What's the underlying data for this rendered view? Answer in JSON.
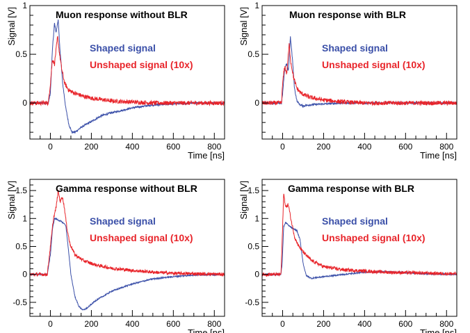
{
  "figure": {
    "colors": {
      "shaped": "#3a4fa8",
      "unshaped": "#e8242a",
      "axes": "#000000",
      "background": "#ffffff"
    },
    "xlabel": "Time [ns]",
    "ylabel": "Signal [V]"
  },
  "chart_data": [
    {
      "type": "line",
      "title": "Muon response without BLR",
      "xlabel": "Time [ns]",
      "ylabel": "Signal [V]",
      "xlim": [
        -100,
        850
      ],
      "ylim": [
        -0.37,
        1.0
      ],
      "xticks": [
        0,
        200,
        400,
        600,
        800
      ],
      "yticks": [
        0,
        0.5,
        1
      ],
      "ytick_labels": [
        "0",
        "0.5",
        "1"
      ],
      "grid": false,
      "legend": "top-right",
      "series": [
        {
          "name": "Shaped signal",
          "color": "#3a4fa8",
          "noise": 0.01,
          "points": [
            [
              -100,
              0
            ],
            [
              -10,
              0
            ],
            [
              0,
              0.1
            ],
            [
              10,
              0.55
            ],
            [
              20,
              0.82
            ],
            [
              28,
              0.72
            ],
            [
              38,
              0.86
            ],
            [
              45,
              0.6
            ],
            [
              60,
              0.2
            ],
            [
              75,
              -0.05
            ],
            [
              90,
              -0.22
            ],
            [
              105,
              -0.3
            ],
            [
              120,
              -0.3
            ],
            [
              150,
              -0.25
            ],
            [
              200,
              -0.19
            ],
            [
              250,
              -0.13
            ],
            [
              300,
              -0.1
            ],
            [
              400,
              -0.05
            ],
            [
              500,
              -0.02
            ],
            [
              600,
              -0.01
            ],
            [
              700,
              0
            ],
            [
              850,
              0
            ]
          ]
        },
        {
          "name": "Unshaped signal (10x)",
          "color": "#e8242a",
          "noise": 0.022,
          "points": [
            [
              -100,
              0
            ],
            [
              -10,
              0
            ],
            [
              0,
              0.2
            ],
            [
              10,
              0.45
            ],
            [
              20,
              0.4
            ],
            [
              35,
              0.68
            ],
            [
              45,
              0.5
            ],
            [
              55,
              0.35
            ],
            [
              70,
              0.2
            ],
            [
              90,
              0.13
            ],
            [
              120,
              0.1
            ],
            [
              160,
              0.07
            ],
            [
              200,
              0.05
            ],
            [
              300,
              0.02
            ],
            [
              400,
              0.01
            ],
            [
              500,
              0
            ],
            [
              850,
              0
            ]
          ]
        }
      ]
    },
    {
      "type": "line",
      "title": "Muon response with BLR",
      "xlabel": "Time [ns]",
      "ylabel": "Signal [V]",
      "xlim": [
        -100,
        850
      ],
      "ylim": [
        -0.37,
        1.0
      ],
      "xticks": [
        0,
        200,
        400,
        600,
        800
      ],
      "yticks": [
        0,
        0.5,
        1
      ],
      "ytick_labels": [
        "0",
        "0.5",
        "1"
      ],
      "grid": false,
      "legend": "top-right",
      "series": [
        {
          "name": "Shaped signal",
          "color": "#3a4fa8",
          "noise": 0.01,
          "points": [
            [
              -100,
              0
            ],
            [
              -5,
              0
            ],
            [
              0,
              0.1
            ],
            [
              10,
              0.35
            ],
            [
              20,
              0.4
            ],
            [
              28,
              0.32
            ],
            [
              38,
              0.68
            ],
            [
              48,
              0.45
            ],
            [
              58,
              0.15
            ],
            [
              70,
              0.02
            ],
            [
              85,
              -0.02
            ],
            [
              100,
              -0.03
            ],
            [
              130,
              -0.02
            ],
            [
              200,
              -0.01
            ],
            [
              300,
              0
            ],
            [
              850,
              0
            ]
          ]
        },
        {
          "name": "Unshaped signal (10x)",
          "color": "#e8242a",
          "noise": 0.022,
          "points": [
            [
              -100,
              0
            ],
            [
              -5,
              0
            ],
            [
              0,
              0.2
            ],
            [
              10,
              0.38
            ],
            [
              20,
              0.3
            ],
            [
              32,
              0.6
            ],
            [
              40,
              0.42
            ],
            [
              55,
              0.25
            ],
            [
              70,
              0.15
            ],
            [
              90,
              0.1
            ],
            [
              130,
              0.06
            ],
            [
              200,
              0.03
            ],
            [
              300,
              0.01
            ],
            [
              400,
              0
            ],
            [
              850,
              0
            ]
          ]
        }
      ]
    },
    {
      "type": "line",
      "title": "Gamma response without BLR",
      "xlabel": "Time [ns]",
      "ylabel": "Signal [V]",
      "xlim": [
        -100,
        850
      ],
      "ylim": [
        -0.75,
        1.7
      ],
      "xticks": [
        0,
        200,
        400,
        600,
        800
      ],
      "yticks": [
        -0.5,
        0,
        0.5,
        1,
        1.5
      ],
      "ytick_labels": [
        "-0.5",
        "0",
        "0.5",
        "1",
        "1.5"
      ],
      "grid": false,
      "legend": "top-right",
      "series": [
        {
          "name": "Shaped signal",
          "color": "#3a4fa8",
          "noise": 0.012,
          "points": [
            [
              -100,
              0
            ],
            [
              -15,
              0
            ],
            [
              0,
              0.35
            ],
            [
              10,
              0.8
            ],
            [
              20,
              1.0
            ],
            [
              40,
              0.97
            ],
            [
              60,
              0.93
            ],
            [
              75,
              0.88
            ],
            [
              85,
              0.55
            ],
            [
              100,
              0.0
            ],
            [
              120,
              -0.4
            ],
            [
              140,
              -0.58
            ],
            [
              160,
              -0.64
            ],
            [
              180,
              -0.6
            ],
            [
              220,
              -0.47
            ],
            [
              300,
              -0.3
            ],
            [
              400,
              -0.17
            ],
            [
              500,
              -0.08
            ],
            [
              600,
              -0.04
            ],
            [
              700,
              -0.01
            ],
            [
              850,
              0
            ]
          ]
        },
        {
          "name": "Unshaped signal (10x)",
          "color": "#e8242a",
          "noise": 0.03,
          "points": [
            [
              -100,
              0
            ],
            [
              -15,
              0
            ],
            [
              0,
              0.5
            ],
            [
              15,
              1.0
            ],
            [
              28,
              1.2
            ],
            [
              38,
              1.5
            ],
            [
              48,
              1.3
            ],
            [
              58,
              1.4
            ],
            [
              68,
              1.2
            ],
            [
              80,
              0.85
            ],
            [
              95,
              0.55
            ],
            [
              120,
              0.35
            ],
            [
              160,
              0.25
            ],
            [
              220,
              0.17
            ],
            [
              300,
              0.11
            ],
            [
              400,
              0.07
            ],
            [
              500,
              0.04
            ],
            [
              600,
              0.02
            ],
            [
              850,
              0
            ]
          ]
        }
      ]
    },
    {
      "type": "line",
      "title": "Gamma response with BLR",
      "xlabel": "Time [ns]",
      "ylabel": "Signal [V]",
      "xlim": [
        -100,
        850
      ],
      "ylim": [
        -0.75,
        1.7
      ],
      "xticks": [
        0,
        200,
        400,
        600,
        800
      ],
      "yticks": [
        -0.5,
        0,
        0.5,
        1,
        1.5
      ],
      "ytick_labels": [
        "-0.5",
        "0",
        "0.5",
        "1",
        "1.5"
      ],
      "grid": false,
      "legend": "top-right",
      "series": [
        {
          "name": "Shaped signal",
          "color": "#3a4fa8",
          "noise": 0.012,
          "points": [
            [
              -100,
              0
            ],
            [
              -8,
              0
            ],
            [
              -2,
              0.2
            ],
            [
              5,
              0.85
            ],
            [
              15,
              0.93
            ],
            [
              30,
              0.87
            ],
            [
              50,
              0.82
            ],
            [
              70,
              0.78
            ],
            [
              85,
              0.62
            ],
            [
              100,
              0.2
            ],
            [
              115,
              -0.02
            ],
            [
              140,
              -0.07
            ],
            [
              200,
              -0.04
            ],
            [
              300,
              0
            ],
            [
              400,
              0.04
            ],
            [
              500,
              0.05
            ],
            [
              600,
              0.03
            ],
            [
              700,
              0.01
            ],
            [
              850,
              0
            ]
          ]
        },
        {
          "name": "Unshaped signal (10x)",
          "color": "#e8242a",
          "noise": 0.03,
          "points": [
            [
              -100,
              0
            ],
            [
              -8,
              0
            ],
            [
              -2,
              0.6
            ],
            [
              5,
              1.45
            ],
            [
              15,
              1.2
            ],
            [
              28,
              1.25
            ],
            [
              40,
              1.0
            ],
            [
              60,
              0.65
            ],
            [
              80,
              0.5
            ],
            [
              100,
              0.4
            ],
            [
              140,
              0.25
            ],
            [
              200,
              0.14
            ],
            [
              300,
              0.08
            ],
            [
              400,
              0.06
            ],
            [
              500,
              0.04
            ],
            [
              600,
              0.03
            ],
            [
              850,
              0.01
            ]
          ]
        }
      ]
    }
  ]
}
